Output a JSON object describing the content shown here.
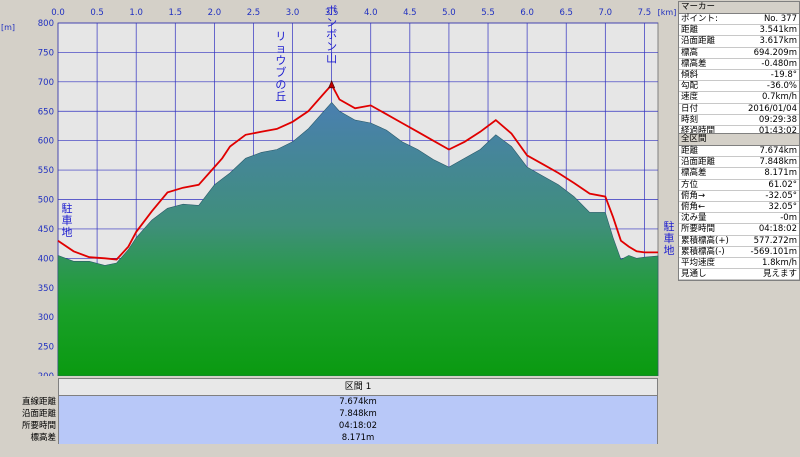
{
  "chart_data": {
    "type": "area",
    "x_unit_label": "[km]",
    "y_unit_label": "[m]",
    "xlim": [
      0,
      7.674
    ],
    "ylim": [
      200,
      800
    ],
    "x_ticks": [
      "0.0",
      "0.5",
      "1.0",
      "1.5",
      "2.0",
      "2.5",
      "3.0",
      "3.5",
      "4.0",
      "4.5",
      "5.0",
      "5.5",
      "6.0",
      "6.5",
      "7.0",
      "7.5"
    ],
    "y_ticks": [
      "200",
      "250",
      "300",
      "350",
      "400",
      "450",
      "500",
      "550",
      "600",
      "650",
      "700",
      "750",
      "800"
    ],
    "grid": true,
    "series": [
      {
        "color": "#3a7a8a",
        "x": [
          0.0,
          0.2,
          0.4,
          0.6,
          0.75,
          0.9,
          1.0,
          1.2,
          1.4,
          1.6,
          1.8,
          2.0,
          2.1,
          2.2,
          2.4,
          2.6,
          2.8,
          3.0,
          3.2,
          3.4,
          3.5,
          3.6,
          3.8,
          4.0,
          4.2,
          4.4,
          4.6,
          4.8,
          5.0,
          5.2,
          5.4,
          5.6,
          5.8,
          6.0,
          6.2,
          6.4,
          6.6,
          6.8,
          7.0,
          7.1,
          7.2,
          7.3,
          7.4,
          7.5,
          7.674
        ],
        "y": [
          405,
          395,
          395,
          388,
          392,
          415,
          435,
          465,
          485,
          492,
          490,
          525,
          535,
          545,
          570,
          580,
          585,
          598,
          620,
          650,
          665,
          650,
          635,
          630,
          618,
          598,
          585,
          568,
          555,
          570,
          585,
          610,
          590,
          555,
          540,
          525,
          505,
          478,
          478,
          435,
          398,
          405,
          400,
          402,
          404
        ]
      },
      {
        "color": "#e00000",
        "x": [
          0.0,
          0.2,
          0.4,
          0.6,
          0.75,
          0.9,
          1.0,
          1.2,
          1.4,
          1.6,
          1.8,
          2.0,
          2.1,
          2.2,
          2.4,
          2.6,
          2.8,
          3.0,
          3.2,
          3.4,
          3.5,
          3.6,
          3.8,
          4.0,
          4.2,
          4.4,
          4.6,
          4.8,
          5.0,
          5.2,
          5.4,
          5.6,
          5.8,
          6.0,
          6.2,
          6.4,
          6.6,
          6.8,
          7.0,
          7.1,
          7.2,
          7.3,
          7.4,
          7.5,
          7.674
        ],
        "y": [
          430,
          412,
          402,
          400,
          398,
          420,
          445,
          480,
          512,
          520,
          525,
          555,
          570,
          590,
          610,
          615,
          620,
          632,
          650,
          680,
          695,
          670,
          655,
          660,
          645,
          630,
          615,
          600,
          585,
          598,
          615,
          635,
          612,
          575,
          560,
          545,
          528,
          510,
          505,
          470,
          430,
          420,
          412,
          410,
          410
        ]
      }
    ],
    "annotations": [
      {
        "text": "駐車地",
        "x": 0.0,
        "y": 430
      },
      {
        "text": "リョウブの丘",
        "x": 2.85,
        "y": 636
      },
      {
        "text": "ボンボン山",
        "x": 3.5,
        "y": 695
      },
      {
        "text": "駐車地",
        "x": 7.674,
        "y": 410
      }
    ]
  },
  "marker_panel": {
    "title": "マーカー",
    "rows": [
      {
        "k": "ポイント:",
        "v": "No. 377"
      },
      {
        "k": "距離",
        "v": "3.541km"
      },
      {
        "k": "沿面距離",
        "v": "3.617km"
      },
      {
        "k": "標高",
        "v": "694.209m"
      },
      {
        "k": "標高差",
        "v": "-0.480m"
      },
      {
        "k": "傾斜",
        "v": "-19.8°"
      },
      {
        "k": "勾配",
        "v": "-36.0%"
      },
      {
        "k": "速度",
        "v": "0.7km/h"
      },
      {
        "k": "日付",
        "v": "2016/01/04"
      },
      {
        "k": "時刻",
        "v": "09:29:38"
      },
      {
        "k": "経過時間",
        "v": "01:43:02"
      }
    ]
  },
  "section_panel": {
    "title": "全区間",
    "rows": [
      {
        "k": "距離",
        "v": "7.674km"
      },
      {
        "k": "沿面距離",
        "v": "7.848km"
      },
      {
        "k": "標高差",
        "v": "8.171m"
      },
      {
        "k": "方位",
        "v": "61.02°"
      },
      {
        "k": "俯角→",
        "v": "-32.05°"
      },
      {
        "k": "俯角←",
        "v": "32.05°"
      },
      {
        "k": "沈み量",
        "v": "-0m"
      },
      {
        "k": "所要時間",
        "v": "04:18:02"
      },
      {
        "k": "累積標高(+)",
        "v": "577.272m"
      },
      {
        "k": "累積標高(-)",
        "v": "-569.101m"
      },
      {
        "k": "平均速度",
        "v": "1.8km/h"
      },
      {
        "k": "見通し",
        "v": "見えます"
      }
    ]
  },
  "summary": {
    "header": "区間 1",
    "rows": [
      {
        "label": "直線距離",
        "value": "7.674km"
      },
      {
        "label": "沿面距離",
        "value": "7.848km"
      },
      {
        "label": "所要時間",
        "value": "04:18:02"
      },
      {
        "label": "標高差",
        "value": "8.171m"
      }
    ]
  }
}
